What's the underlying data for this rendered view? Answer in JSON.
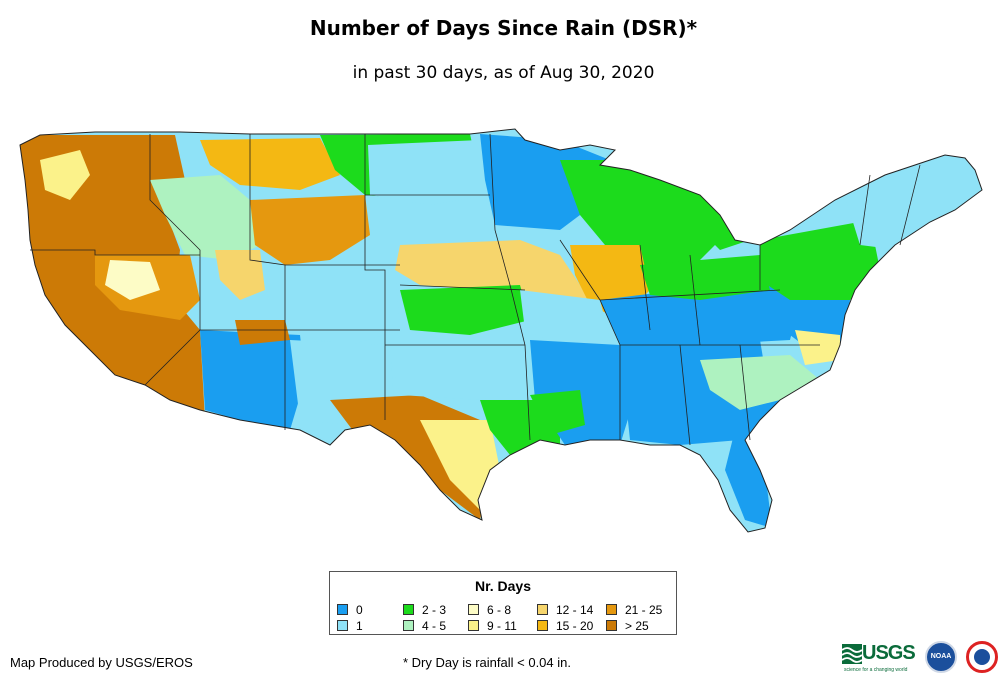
{
  "title": "Number of Days Since Rain (DSR)*",
  "subtitle": "in past 30 days, as of Aug 30, 2020",
  "legend": {
    "title": "Nr. Days",
    "items": [
      {
        "label": "0",
        "color": "#1a9ef0"
      },
      {
        "label": "1",
        "color": "#8fe2f7"
      },
      {
        "label": "2 - 3",
        "color": "#1cdb1c"
      },
      {
        "label": "4 - 5",
        "color": "#aef2c0"
      },
      {
        "label": "6 - 8",
        "color": "#fdfcc6"
      },
      {
        "label": "9 - 11",
        "color": "#fbf28a"
      },
      {
        "label": "12 - 14",
        "color": "#f6d56c"
      },
      {
        "label": "15 - 20",
        "color": "#f4b813"
      },
      {
        "label": "21 - 25",
        "color": "#e5980f"
      },
      {
        "label": "> 25",
        "color": "#cc7a06"
      }
    ]
  },
  "credit": "Map Produced by USGS/EROS",
  "footnote": "* Dry Day is rainfall < 0.04 in.",
  "logos": {
    "usgs": "USGS",
    "usgs_tagline": "science for a changing world",
    "noaa": "NOAA"
  }
}
